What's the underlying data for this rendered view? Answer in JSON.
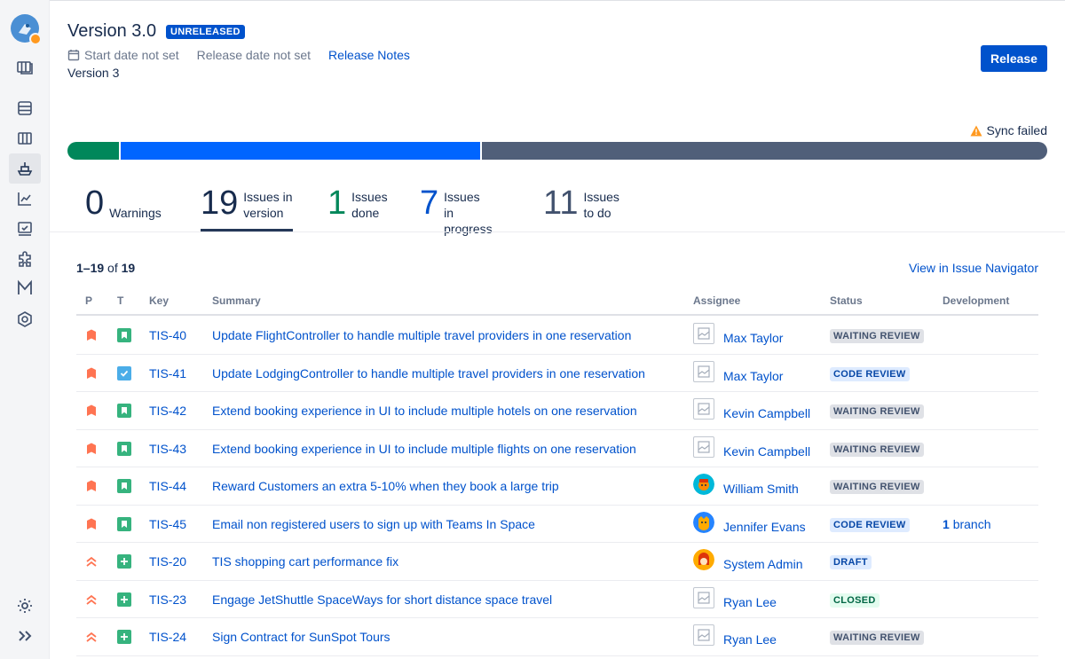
{
  "version": {
    "title": "Version 3.0",
    "status_lozenge": "UNRELEASED",
    "start_date": "Start date not set",
    "release_date": "Release date not set",
    "release_notes_link": "Release Notes",
    "description": "Version 3",
    "release_button": "Release"
  },
  "sync": {
    "label": "Sync failed",
    "icon": "warning-icon"
  },
  "progress": {
    "colors": {
      "done": "#00875A",
      "in_progress": "#0065FF",
      "to_do": "#505F79"
    },
    "done": 1,
    "in_progress": 7,
    "to_do": 11
  },
  "stats": {
    "warnings": {
      "value": "0",
      "label": "Warnings",
      "color": "#172B4D"
    },
    "in_version": {
      "value": "19",
      "label1": "Issues in",
      "label2": "version",
      "color": "#172B4D"
    },
    "done": {
      "value": "1",
      "label1": "Issues",
      "label2": "done",
      "color": "#00875A"
    },
    "in_progress": {
      "value": "7",
      "label1": "Issues",
      "label2": "in progress",
      "color": "#0052CC"
    },
    "to_do": {
      "value": "11",
      "label1": "Issues",
      "label2": "to do",
      "color": "#42526E"
    }
  },
  "table": {
    "range": "1–19",
    "of_word": "of",
    "total": "19",
    "navigator_link": "View in Issue Navigator",
    "headers": {
      "p": "P",
      "t": "T",
      "key": "Key",
      "summary": "Summary",
      "assignee": "Assignee",
      "status": "Status",
      "development": "Development"
    },
    "rows": [
      {
        "priority": "high",
        "type": "story",
        "key": "TIS-40",
        "summary": "Update FlightController to handle multiple travel providers in one reservation",
        "avatar": "placeholder",
        "assignee": "Max Taylor",
        "status": "WAITING REVIEW",
        "status_style": "grey",
        "dev": ""
      },
      {
        "priority": "high",
        "type": "task",
        "key": "TIS-41",
        "summary": "Update LodgingController to handle multiple travel providers in one reservation",
        "avatar": "placeholder",
        "assignee": "Max Taylor",
        "status": "CODE REVIEW",
        "status_style": "blue",
        "dev": ""
      },
      {
        "priority": "high",
        "type": "story",
        "key": "TIS-42",
        "summary": "Extend booking experience in UI to include multiple hotels on one reservation",
        "avatar": "placeholder",
        "assignee": "Kevin Campbell",
        "status": "WAITING REVIEW",
        "status_style": "grey",
        "dev": ""
      },
      {
        "priority": "high",
        "type": "story",
        "key": "TIS-43",
        "summary": "Extend booking experience in UI to include multiple flights on one reservation",
        "avatar": "placeholder",
        "assignee": "Kevin Campbell",
        "status": "WAITING REVIEW",
        "status_style": "grey",
        "dev": ""
      },
      {
        "priority": "high",
        "type": "story",
        "key": "TIS-44",
        "summary": "Reward Customers an extra 5-10% when they book a large trip",
        "avatar": "william",
        "assignee": "William Smith",
        "status": "WAITING REVIEW",
        "status_style": "grey",
        "dev": ""
      },
      {
        "priority": "high",
        "type": "story",
        "key": "TIS-45",
        "summary": "Email non registered users to sign up with Teams In Space",
        "avatar": "jennifer",
        "assignee": "Jennifer Evans",
        "status": "CODE REVIEW",
        "status_style": "blue",
        "dev_count": "1",
        "dev_label": "branch"
      },
      {
        "priority": "highest",
        "type": "improvement",
        "key": "TIS-20",
        "summary": "TIS shopping cart performance fix",
        "avatar": "admin",
        "assignee": "System Admin",
        "status": "DRAFT",
        "status_style": "blue",
        "dev": ""
      },
      {
        "priority": "highest",
        "type": "improvement",
        "key": "TIS-23",
        "summary": "Engage JetShuttle SpaceWays for short distance space travel",
        "avatar": "placeholder",
        "assignee": "Ryan Lee",
        "status": "CLOSED",
        "status_style": "green",
        "dev": ""
      },
      {
        "priority": "highest",
        "type": "improvement",
        "key": "TIS-24",
        "summary": "Sign Contract for SunSpot Tours",
        "avatar": "placeholder",
        "assignee": "Ryan Lee",
        "status": "WAITING REVIEW",
        "status_style": "grey",
        "dev": ""
      }
    ]
  },
  "sidebar": {
    "icons": [
      "project-avatar-icon",
      "board-icon",
      "backlog-icon",
      "columns-icon",
      "releases-icon",
      "reports-icon",
      "pages-icon",
      "addons-icon",
      "m-app-icon",
      "hexagon-icon",
      "settings-icon",
      "expand-icon"
    ]
  }
}
